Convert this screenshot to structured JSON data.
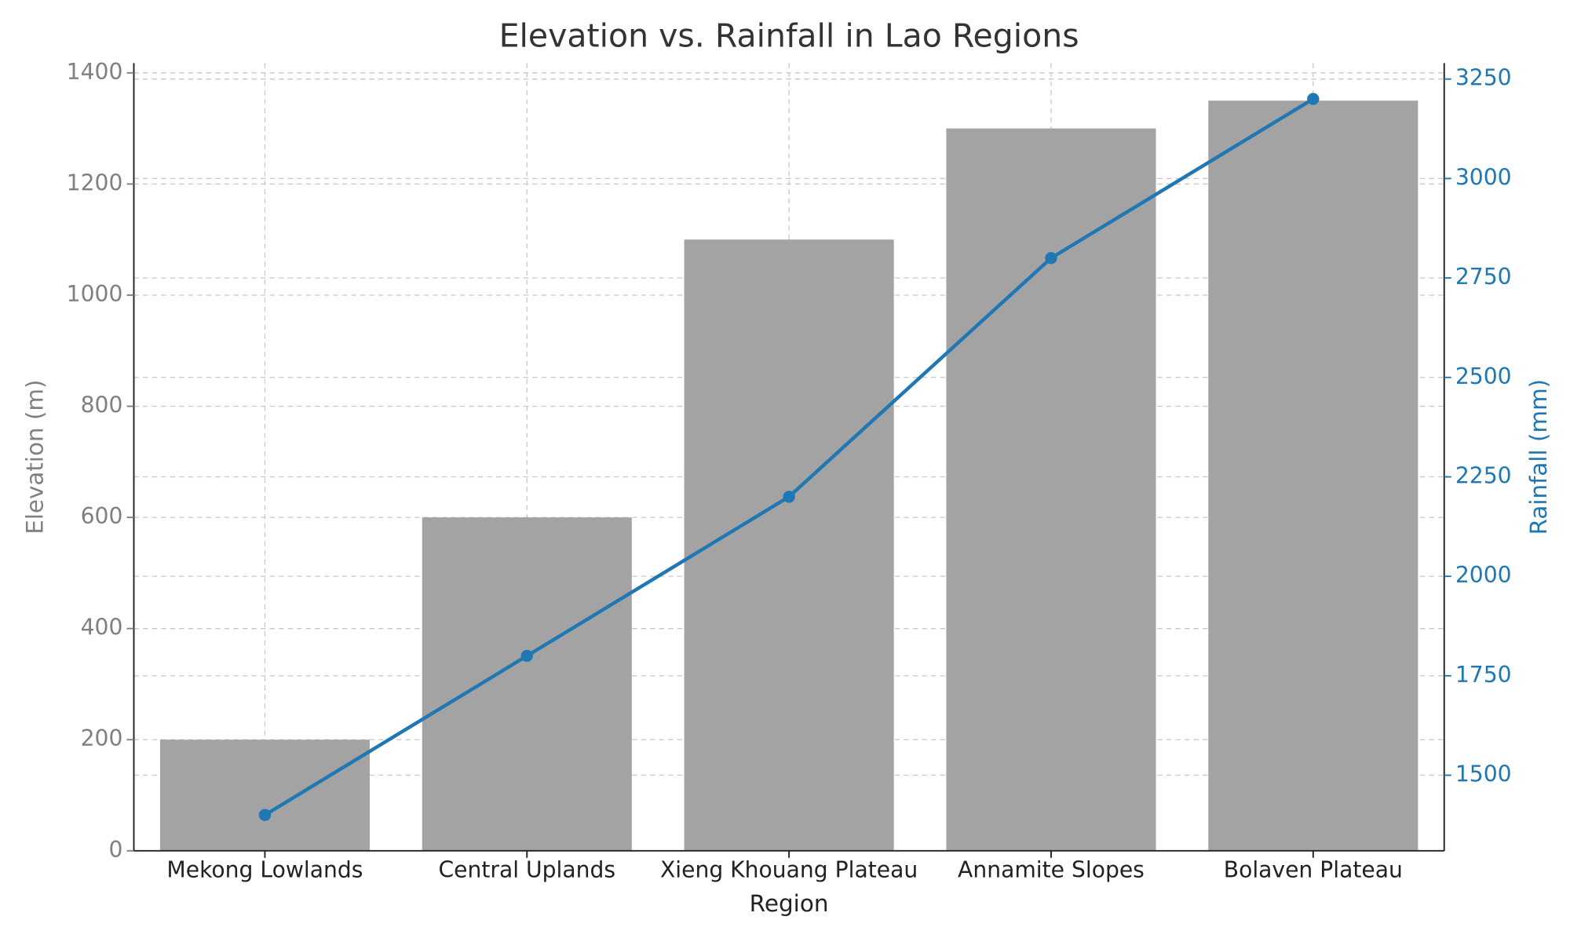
{
  "chart_data": {
    "type": "bar",
    "title": "Elevation vs. Rainfall in Lao Regions",
    "xlabel": "Region",
    "ylabel": "Elevation (m)",
    "y2label": "Rainfall (mm)",
    "categories": [
      "Mekong Lowlands",
      "Central Uplands",
      "Xieng Khouang Plateau",
      "Annamite Slopes",
      "Bolaven Plateau"
    ],
    "series": [
      {
        "type": "bar",
        "color": "#a3a3a3",
        "values": [
          200,
          600,
          1100,
          1300,
          1350
        ]
      },
      {
        "type": "line",
        "color": "#1f77b4",
        "axis": "y2",
        "values": [
          1400,
          1800,
          2200,
          2800,
          3200
        ]
      }
    ],
    "ylim": [
      0,
      1417.5
    ],
    "yticks": [
      0,
      200,
      400,
      600,
      800,
      1000,
      1200,
      1400
    ],
    "y2lim": [
      1310,
      3290
    ],
    "y2ticks": [
      1500,
      1750,
      2000,
      2250,
      2500,
      2750,
      3000,
      3250
    ],
    "y_color": "#808080",
    "y2_color": "#1f77b4",
    "grid": true
  }
}
